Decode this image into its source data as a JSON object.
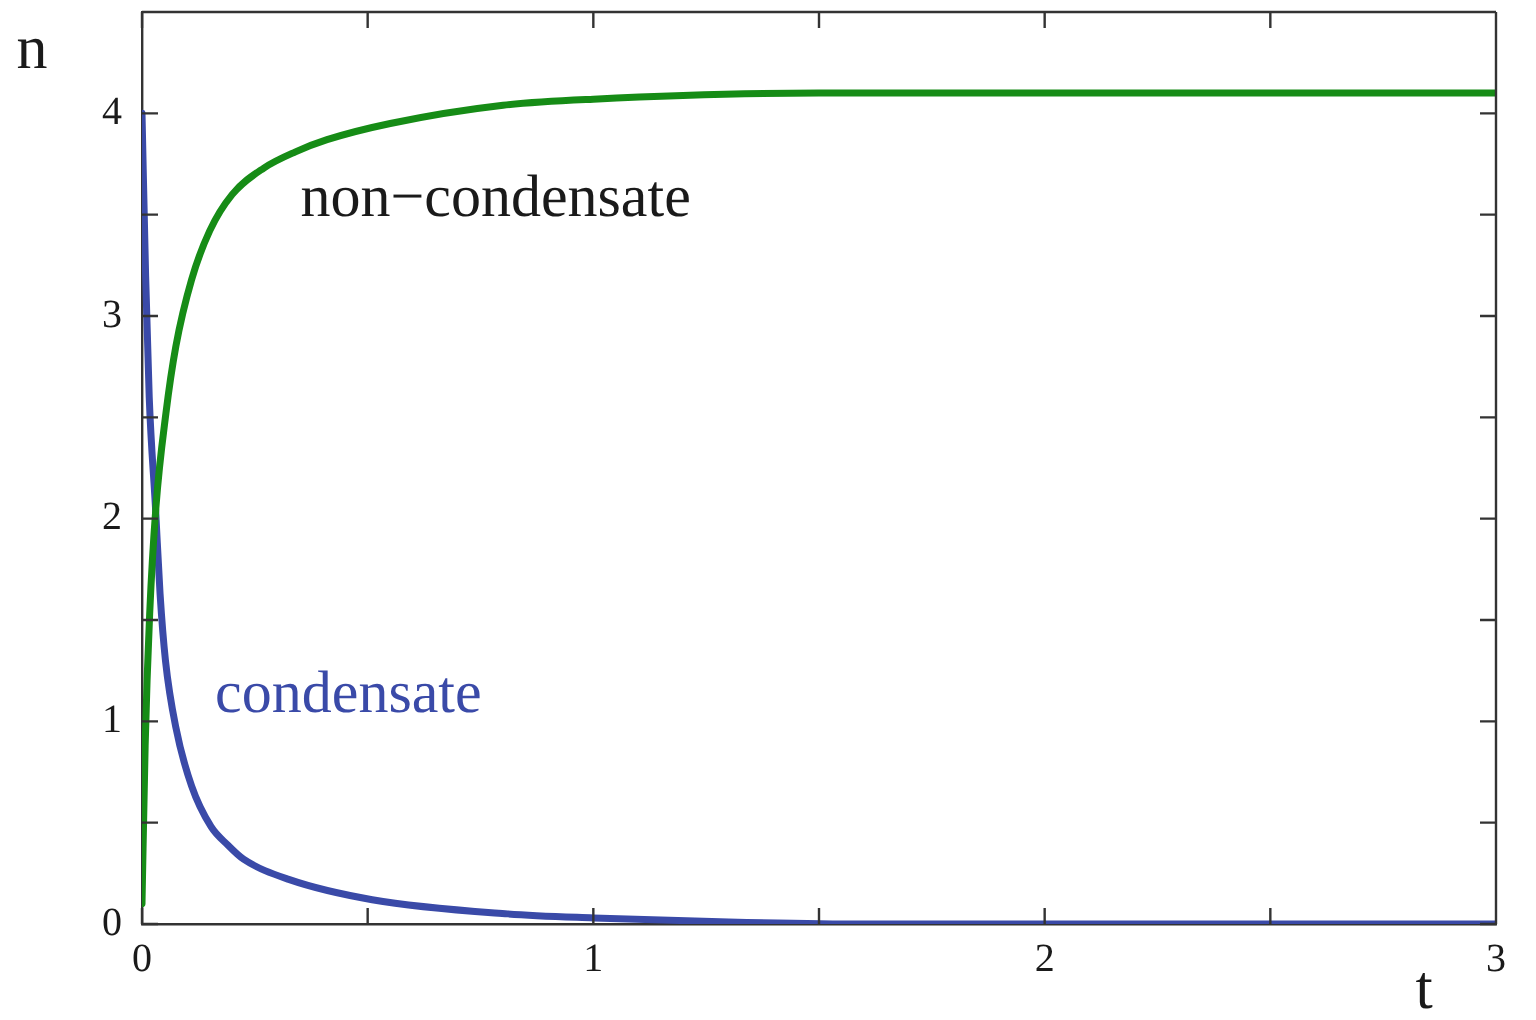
{
  "chart_data": {
    "type": "line",
    "xlabel": "t",
    "ylabel": "n",
    "xlim": [
      0,
      3
    ],
    "ylim": [
      0,
      4.5
    ],
    "xticks": [
      0,
      {
        "value": 0.5,
        "label": null
      },
      1,
      {
        "value": 1.5,
        "label": null
      },
      2,
      {
        "value": 2.5,
        "label": null
      },
      3
    ],
    "yticks": [
      0,
      {
        "value": 0.5,
        "label": null
      },
      1,
      {
        "value": 1.5,
        "label": null
      },
      2,
      {
        "value": 2.5,
        "label": null
      },
      3,
      {
        "value": 3.5,
        "label": null
      },
      4
    ],
    "marker": "none",
    "series": [
      {
        "name": "non−condensate",
        "color": "#168c16",
        "x": [
          0,
          0.007,
          0.017,
          0.031,
          0.053,
          0.075,
          0.11,
          0.15,
          0.2,
          0.27,
          0.34,
          0.41,
          0.55,
          0.8,
          1,
          1.5,
          2,
          3
        ],
        "values": [
          0.1,
          0.88,
          1.53,
          2.06,
          2.52,
          2.85,
          3.18,
          3.42,
          3.6,
          3.73,
          3.81,
          3.87,
          3.95,
          4.04,
          4.07,
          4.1,
          4.1,
          4.1
        ]
      },
      {
        "name": "condensate",
        "color": "#3a4aa8",
        "x": [
          0,
          0.008,
          0.016,
          0.03,
          0.04,
          0.052,
          0.075,
          0.11,
          0.153,
          0.19,
          0.225,
          0.325,
          0.51,
          0.81,
          1,
          1.3,
          1.6,
          2,
          3
        ],
        "values": [
          4,
          3.2,
          2.6,
          2.05,
          1.63,
          1.3,
          0.97,
          0.68,
          0.48,
          0.39,
          0.32,
          0.22,
          0.12,
          0.05,
          0.03,
          0.01,
          0,
          0,
          0
        ]
      }
    ]
  }
}
